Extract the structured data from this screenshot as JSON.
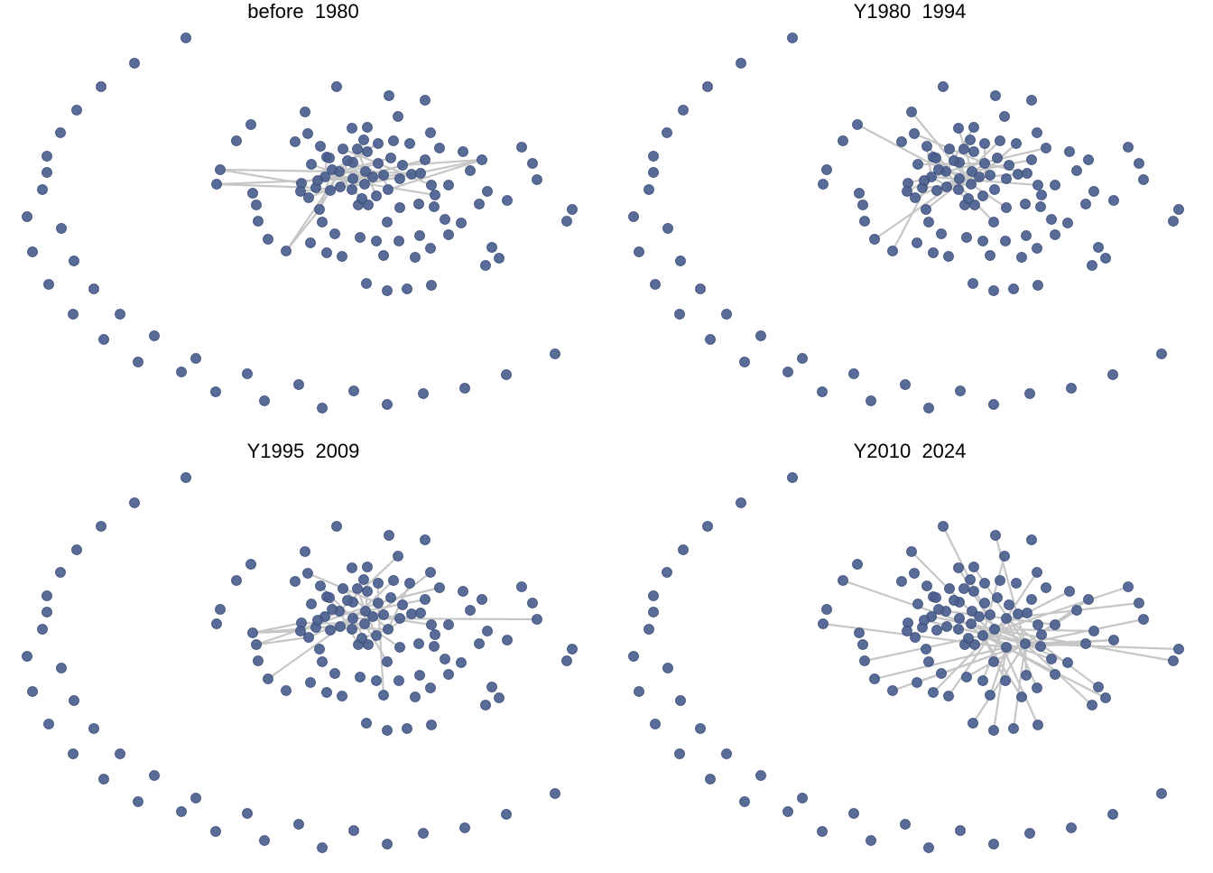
{
  "colors": {
    "node_fill": "#4b5f8f",
    "node_stroke": "#3a4d7a",
    "edge": "#c6c6c6",
    "background": "#ffffff"
  },
  "panels": [
    {
      "title": "before  1980"
    },
    {
      "title": "Y1980  1994"
    },
    {
      "title": "Y1995  2009"
    },
    {
      "title": "Y2010  2024"
    }
  ]
}
